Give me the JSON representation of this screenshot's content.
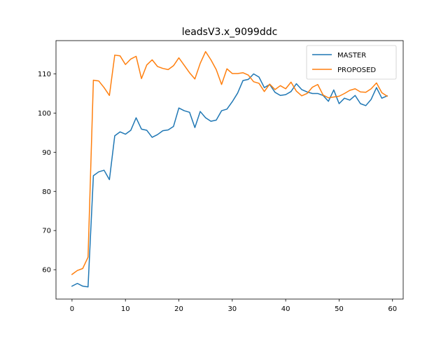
{
  "chart_data": {
    "type": "line",
    "title": "leadsV3.x_9099ddc",
    "xlabel": "",
    "ylabel": "",
    "xlim": [
      -3,
      62
    ],
    "ylim": [
      52.5,
      118.5
    ],
    "xticks": [
      0,
      10,
      20,
      30,
      40,
      50,
      60
    ],
    "yticks": [
      60,
      70,
      80,
      90,
      100,
      110
    ],
    "grid": false,
    "legend_position": "top-right",
    "x": [
      0,
      1,
      2,
      3,
      4,
      5,
      6,
      7,
      8,
      9,
      10,
      11,
      12,
      13,
      14,
      15,
      16,
      17,
      18,
      19,
      20,
      21,
      22,
      23,
      24,
      25,
      26,
      27,
      28,
      29,
      30,
      31,
      32,
      33,
      34,
      35,
      36,
      37,
      38,
      39,
      40,
      41,
      42,
      43,
      44,
      45,
      46,
      47,
      48,
      49,
      50,
      51,
      52,
      53,
      54,
      55,
      56,
      57,
      58,
      59
    ],
    "series": [
      {
        "name": "MASTER",
        "color": "#1f77b4",
        "values": [
          55.8,
          56.5,
          55.8,
          55.6,
          84.0,
          85.0,
          85.4,
          83.0,
          94.2,
          95.2,
          94.6,
          95.6,
          98.8,
          95.9,
          95.6,
          93.8,
          94.5,
          95.5,
          95.7,
          96.6,
          101.3,
          100.6,
          100.2,
          96.3,
          100.4,
          98.8,
          97.9,
          98.2,
          100.6,
          101.0,
          102.9,
          105.1,
          108.3,
          108.6,
          110.0,
          109.2,
          106.5,
          107.3,
          105.3,
          104.5,
          104.7,
          105.5,
          107.5,
          106.0,
          105.4,
          105.0,
          105.0,
          104.5,
          103.0,
          105.9,
          102.4,
          103.8,
          103.3,
          104.5,
          102.4,
          101.9,
          103.5,
          106.5,
          103.8,
          104.4
        ]
      },
      {
        "name": "PROPOSED",
        "color": "#ff7f0e",
        "values": [
          58.8,
          59.8,
          60.3,
          63.2,
          108.4,
          108.2,
          106.5,
          104.5,
          114.8,
          114.6,
          112.4,
          113.8,
          114.5,
          108.8,
          112.3,
          113.6,
          111.9,
          111.4,
          111.1,
          112.1,
          114.1,
          112.2,
          110.3,
          108.7,
          112.7,
          115.7,
          113.6,
          111.1,
          107.3,
          111.3,
          110.1,
          110.1,
          110.3,
          109.7,
          108.0,
          107.6,
          105.5,
          107.4,
          106.0,
          107.0,
          106.2,
          107.9,
          105.6,
          104.4,
          105.0,
          106.6,
          107.3,
          104.6,
          103.9,
          104.1,
          104.3,
          105.0,
          105.8,
          106.2,
          105.4,
          105.3,
          106.2,
          107.7,
          105.2,
          104.3
        ]
      }
    ]
  }
}
